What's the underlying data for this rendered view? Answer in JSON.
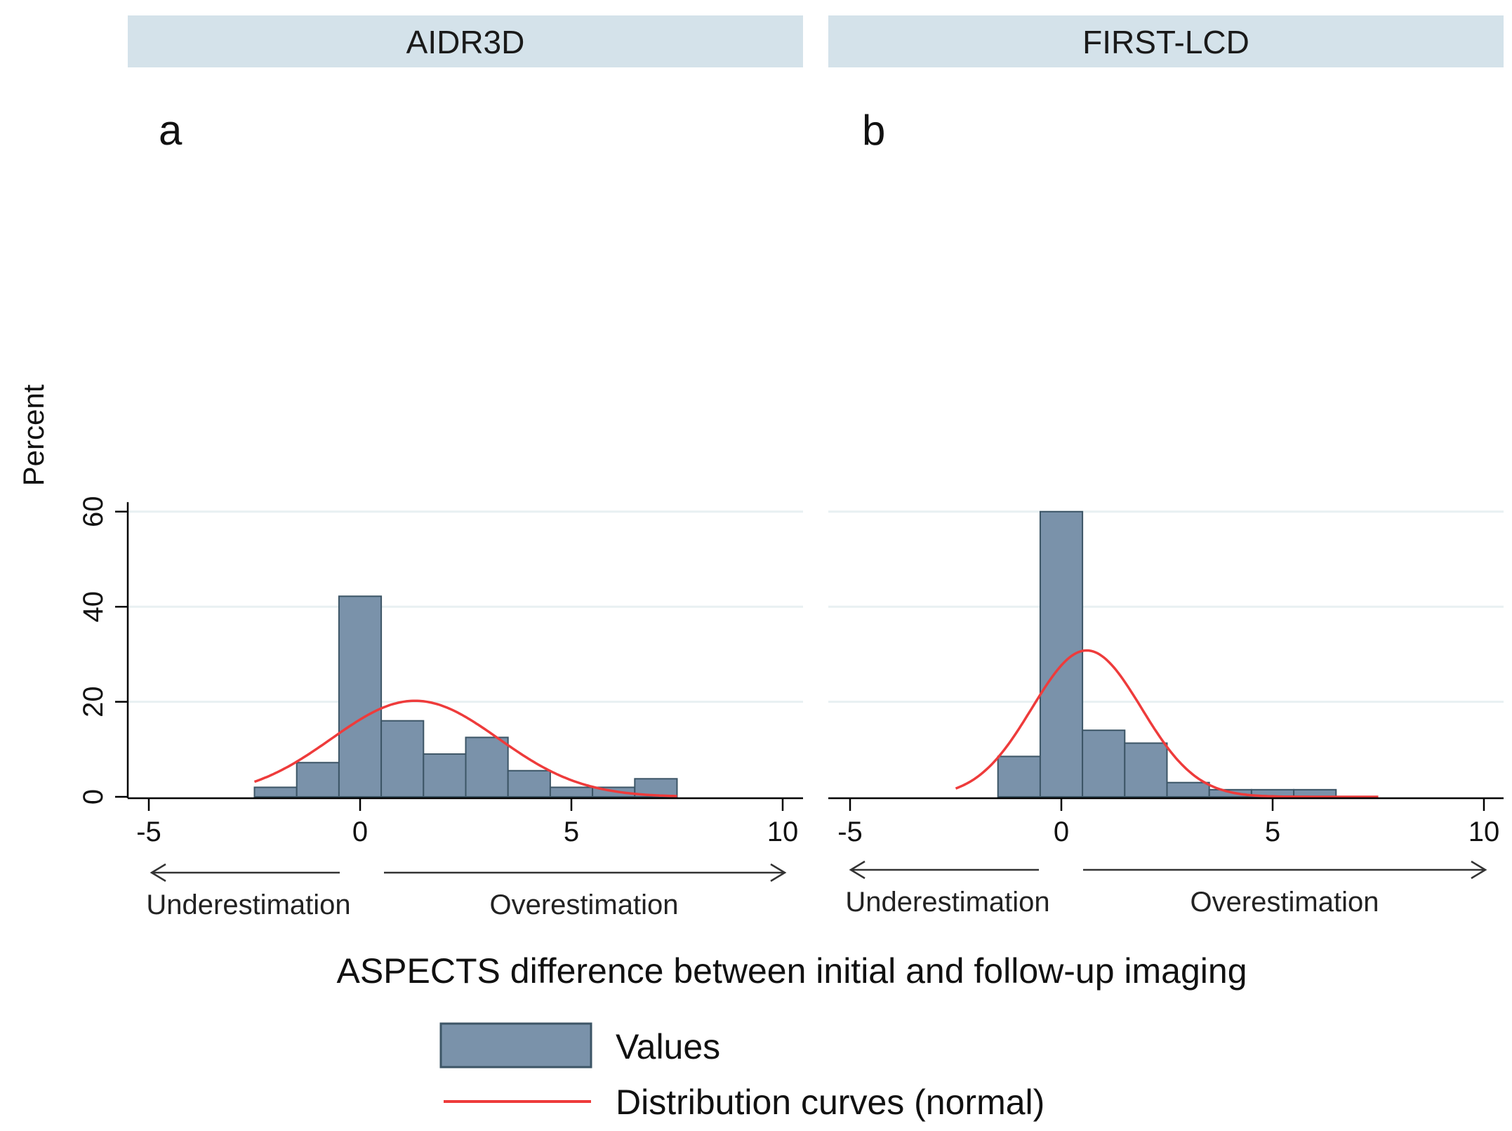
{
  "figure": {
    "x_title": "ASPECTS difference between initial and follow-up imaging",
    "y_title": "Percent",
    "arrows": {
      "left_label": "Underestimation",
      "right_label": "Overestimation"
    },
    "legend": {
      "values_label": "Values",
      "curve_label": "Distribution curves (normal)"
    },
    "colors": {
      "bar_fill": "#7a92aa",
      "bar_stroke": "#3c5566",
      "curve": "#ee3b3b",
      "strip": "#d4e2ea"
    }
  },
  "chart_data": [
    {
      "type": "bar",
      "panel_title": "AIDR3D",
      "panel_letter": "a",
      "xlim": [
        -5.5,
        10.5
      ],
      "ylim": [
        0,
        62
      ],
      "xticks": [
        "-5",
        "0",
        "5",
        "10"
      ],
      "yticks": [
        "0",
        "20",
        "40",
        "60"
      ],
      "bin_width": 1,
      "bars": [
        {
          "x": -2,
          "value": 2
        },
        {
          "x": -1,
          "value": 7.2
        },
        {
          "x": 0,
          "value": 42.2
        },
        {
          "x": 1,
          "value": 16
        },
        {
          "x": 2,
          "value": 9
        },
        {
          "x": 3,
          "value": 12.5
        },
        {
          "x": 4,
          "value": 5.5
        },
        {
          "x": 5,
          "value": 2
        },
        {
          "x": 6,
          "value": 2
        },
        {
          "x": 7,
          "value": 3.8
        }
      ],
      "normal_curve": {
        "peak_x": 1.3,
        "peak_y": 20.2,
        "x_range": [
          -2.5,
          7.5
        ]
      }
    },
    {
      "type": "bar",
      "panel_title": "FIRST-LCD",
      "panel_letter": "b",
      "xlim": [
        -5.5,
        10.5
      ],
      "ylim": [
        0,
        62
      ],
      "xticks": [
        "-5",
        "0",
        "5",
        "10"
      ],
      "yticks": [
        "0",
        "20",
        "40",
        "60"
      ],
      "bin_width": 1,
      "bars": [
        {
          "x": -1,
          "value": 8.5
        },
        {
          "x": 0,
          "value": 60
        },
        {
          "x": 1,
          "value": 14
        },
        {
          "x": 2,
          "value": 11.3
        },
        {
          "x": 3,
          "value": 3
        },
        {
          "x": 4,
          "value": 1.5
        },
        {
          "x": 5,
          "value": 1.5
        },
        {
          "x": 6,
          "value": 1.5
        }
      ],
      "normal_curve": {
        "peak_x": 0.6,
        "peak_y": 30.8,
        "x_range": [
          -2.5,
          7.5
        ]
      }
    }
  ]
}
